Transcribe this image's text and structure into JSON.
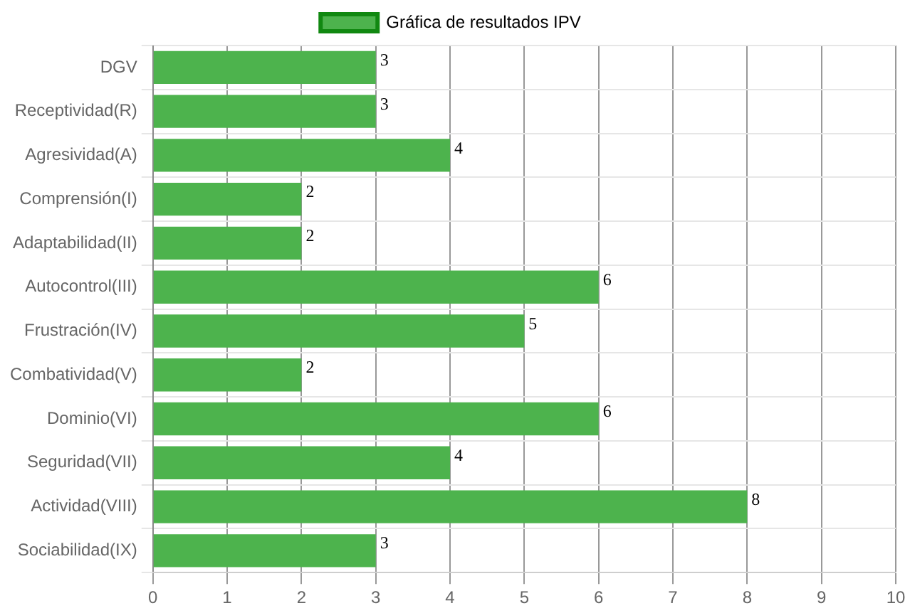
{
  "chart_data": {
    "type": "bar",
    "orientation": "horizontal",
    "categories": [
      "DGV",
      "Receptividad(R)",
      "Agresividad(A)",
      "Comprensión(I)",
      "Adaptabilidad(II)",
      "Autocontrol(III)",
      "Frustración(IV)",
      "Combatividad(V)",
      "Dominio(VI)",
      "Seguridad(VII)",
      "Actividad(VIII)",
      "Sociabilidad(IX)"
    ],
    "series": [
      {
        "name": "Gráfica de resultados IPV",
        "color": "#4db34d",
        "values": [
          3,
          3,
          4,
          2,
          2,
          6,
          5,
          2,
          6,
          4,
          8,
          3
        ]
      }
    ],
    "xlim": [
      0,
      10
    ],
    "xticks": [
      0,
      1,
      2,
      3,
      4,
      5,
      6,
      7,
      8,
      9,
      10
    ],
    "grid": true,
    "legend": "top",
    "data_labels": true
  }
}
